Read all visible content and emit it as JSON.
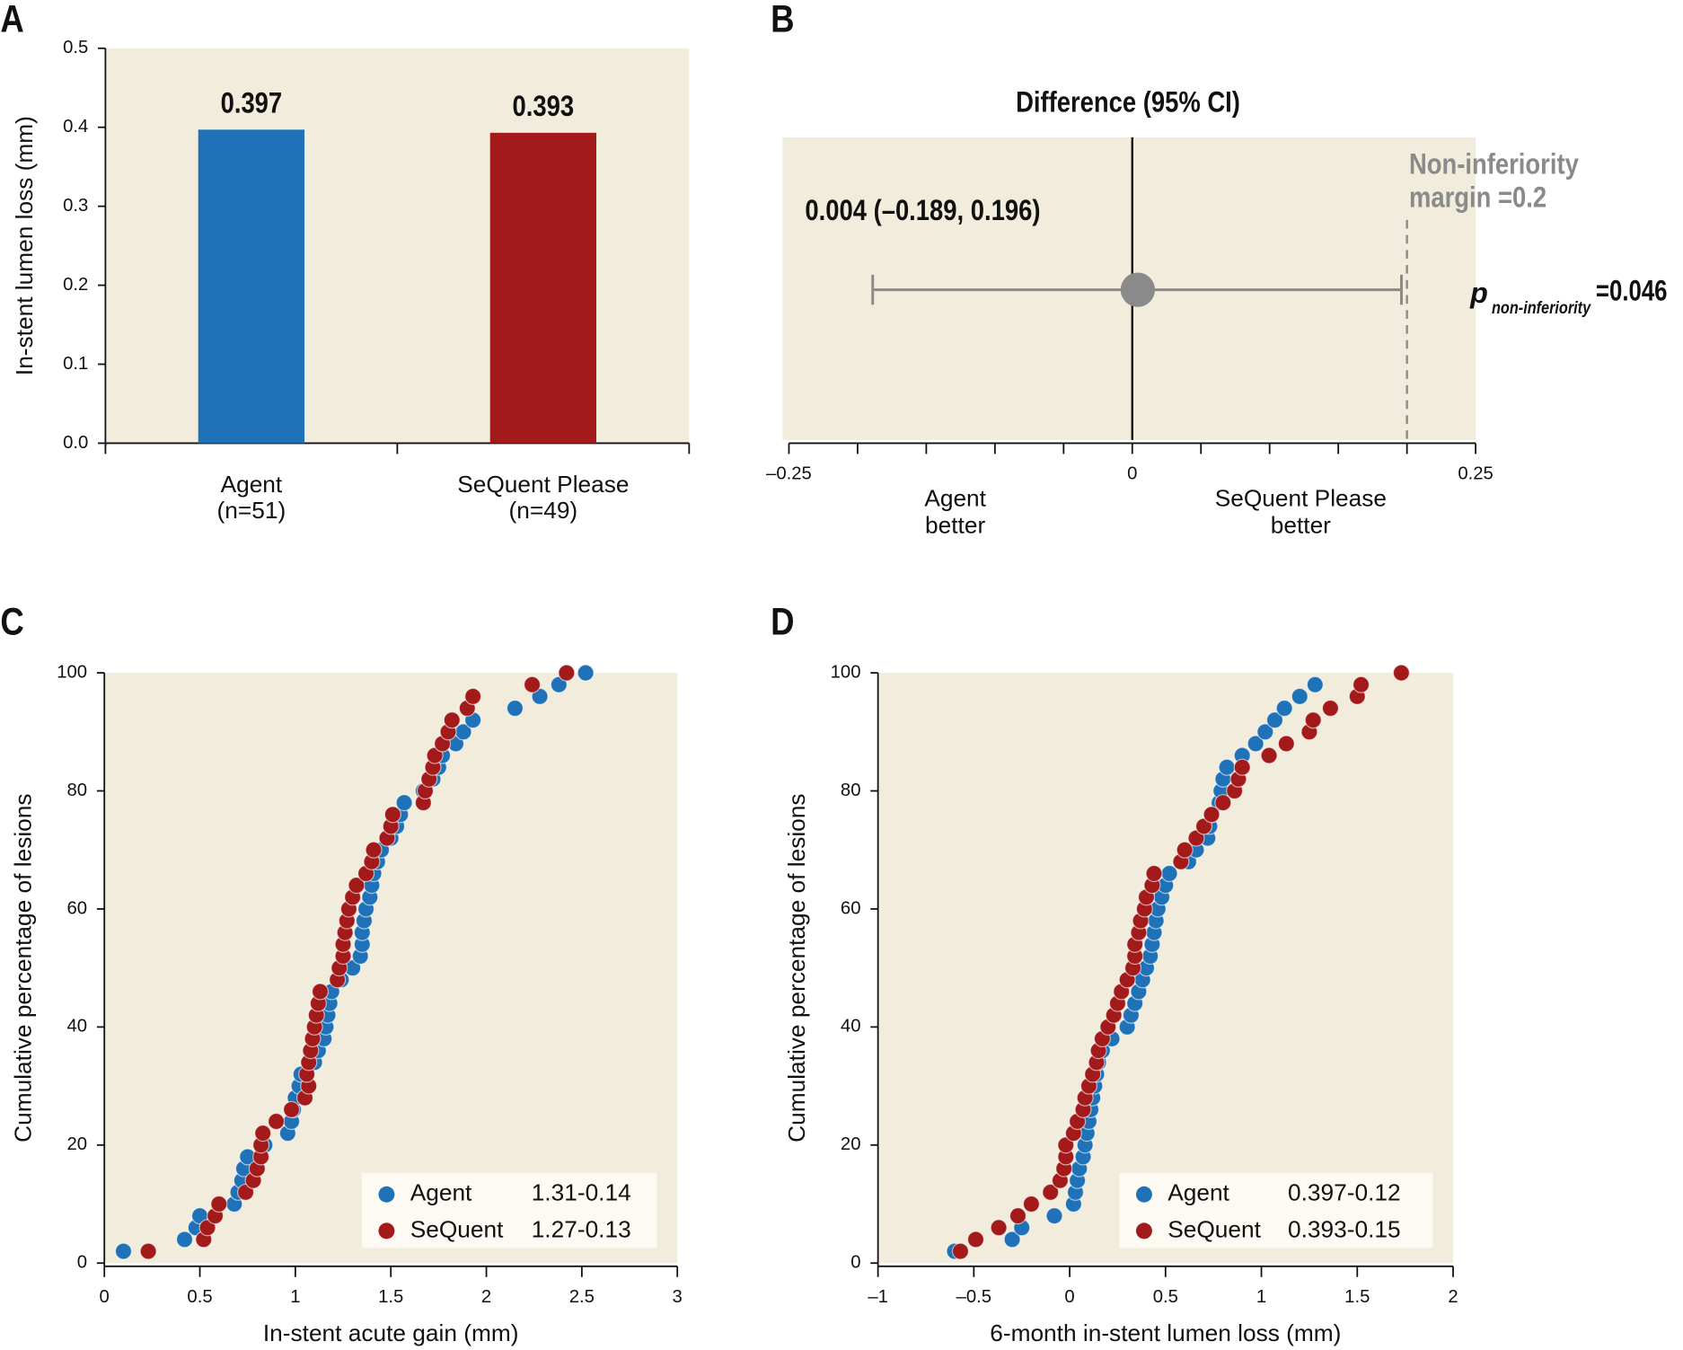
{
  "chart_data": [
    {
      "type": "bar",
      "panel": "A",
      "ylabel": "In-stent lumen loss (mm)",
      "categories": [
        "Agent",
        "SeQuent Please"
      ],
      "category_notes": [
        "(n=51)",
        "(n=49)"
      ],
      "values": [
        0.397,
        0.393
      ],
      "colors": [
        "#1f72b8",
        "#a31a1b"
      ],
      "ylim": [
        0,
        0.5
      ],
      "yticks": [
        {
          "value": 0,
          "label": "0.0"
        },
        0.1,
        0.2,
        0.3,
        0.4,
        0.5
      ]
    },
    {
      "type": "forest",
      "panel": "B",
      "title": "Difference (95% CI)",
      "estimate": 0.004,
      "ci": [
        -0.189,
        0.196
      ],
      "estimate_label": "0.004 (–0.189, 0.196)",
      "margin": 0.2,
      "margin_label": [
        "Non-inferiority",
        "margin =0.2"
      ],
      "p_label": [
        "p",
        "non-inferiority",
        "=0.046"
      ],
      "side_labels": [
        [
          "Agent",
          "better"
        ],
        [
          "SeQuent Please",
          "better"
        ]
      ],
      "xlim": [
        -0.25,
        0.25
      ],
      "xticks": [
        {
          "value": -0.25,
          "label": "–0.25"
        },
        0,
        0.25
      ],
      "xminor_ticks": [
        -0.2,
        -0.15,
        -0.1,
        -0.05,
        0.05,
        0.1,
        0.15,
        0.2
      ]
    },
    {
      "type": "scatter",
      "panel": "C",
      "xlabel": "In-stent acute gain (mm)",
      "ylabel": "Cumulative percentage of lesions",
      "xlim": [
        0,
        3
      ],
      "xticks": [
        0,
        0.5,
        1,
        1.5,
        2,
        2.5,
        3
      ],
      "ylim": [
        0,
        100
      ],
      "yticks": [
        0,
        20,
        40,
        60,
        80,
        100
      ],
      "series": [
        {
          "name": "Agent",
          "stat": "1.31-0.14",
          "color": "#1f72b8",
          "x": [
            0.1,
            0.42,
            0.48,
            0.5,
            0.68,
            0.7,
            0.72,
            0.73,
            0.75,
            0.84,
            0.96,
            0.98,
            0.99,
            1.0,
            1.02,
            1.03,
            1.1,
            1.12,
            1.15,
            1.16,
            1.17,
            1.18,
            1.19,
            1.24,
            1.3,
            1.34,
            1.35,
            1.35,
            1.36,
            1.37,
            1.39,
            1.4,
            1.41,
            1.43,
            1.45,
            1.5,
            1.53,
            1.55,
            1.57,
            1.67,
            1.72,
            1.75,
            1.77,
            1.84,
            1.88,
            1.93,
            2.15,
            2.28,
            2.38,
            2.52
          ],
          "y": [
            2,
            4,
            6,
            8,
            10,
            12,
            14,
            16,
            18,
            20,
            22,
            24,
            26,
            28,
            30,
            32,
            34,
            36,
            38,
            40,
            42,
            44,
            46,
            48,
            50,
            52,
            54,
            56,
            58,
            60,
            62,
            64,
            66,
            68,
            70,
            72,
            74,
            76,
            78,
            80,
            82,
            84,
            86,
            88,
            90,
            92,
            94,
            96,
            98,
            100
          ]
        },
        {
          "name": "SeQuent",
          "stat": "1.27-0.13",
          "color": "#a31a1b",
          "x": [
            0.23,
            0.52,
            0.54,
            0.58,
            0.6,
            0.74,
            0.78,
            0.8,
            0.82,
            0.82,
            0.83,
            0.9,
            0.98,
            1.05,
            1.07,
            1.06,
            1.07,
            1.08,
            1.09,
            1.1,
            1.11,
            1.12,
            1.13,
            1.22,
            1.23,
            1.25,
            1.25,
            1.26,
            1.27,
            1.28,
            1.3,
            1.32,
            1.37,
            1.4,
            1.41,
            1.48,
            1.5,
            1.51,
            1.67,
            1.68,
            1.7,
            1.72,
            1.73,
            1.77,
            1.8,
            1.82,
            1.9,
            1.93,
            2.24,
            2.42
          ],
          "y": [
            2,
            4,
            6,
            8,
            10,
            12,
            14,
            16,
            18,
            20,
            22,
            24,
            26,
            28,
            30,
            32,
            34,
            36,
            38,
            40,
            42,
            44,
            46,
            48,
            50,
            52,
            54,
            56,
            58,
            60,
            62,
            64,
            66,
            68,
            70,
            72,
            74,
            76,
            78,
            80,
            82,
            84,
            86,
            88,
            90,
            92,
            94,
            96,
            98,
            100
          ]
        }
      ]
    },
    {
      "type": "scatter",
      "panel": "D",
      "xlabel": "6-month in-stent lumen loss (mm)",
      "ylabel": "Cumulative percentage of lesions",
      "xlim": [
        -1,
        2
      ],
      "xticks": [
        {
          "value": -1,
          "label": "–1"
        },
        {
          "value": -0.5,
          "label": "–0.5"
        },
        0,
        0.5,
        1,
        1.5,
        2
      ],
      "ylim": [
        0,
        100
      ],
      "yticks": [
        0,
        20,
        40,
        60,
        80,
        100
      ],
      "series": [
        {
          "name": "Agent",
          "stat": "0.397-0.12",
          "color": "#1f72b8",
          "x": [
            -0.6,
            -0.3,
            -0.25,
            -0.08,
            0.02,
            0.03,
            0.04,
            0.05,
            0.07,
            0.08,
            0.09,
            0.1,
            0.11,
            0.12,
            0.13,
            0.14,
            0.15,
            0.17,
            0.22,
            0.3,
            0.32,
            0.34,
            0.36,
            0.38,
            0.4,
            0.42,
            0.43,
            0.44,
            0.45,
            0.46,
            0.48,
            0.5,
            0.52,
            0.62,
            0.66,
            0.72,
            0.73,
            0.74,
            0.78,
            0.79,
            0.8,
            0.82,
            0.9,
            0.97,
            1.02,
            1.07,
            1.12,
            1.2,
            1.28
          ],
          "y": [
            2,
            4,
            6,
            8,
            10,
            12,
            14,
            16,
            18,
            20,
            22,
            24,
            26,
            28,
            30,
            32,
            34,
            36,
            38,
            40,
            42,
            44,
            46,
            48,
            50,
            52,
            54,
            56,
            58,
            60,
            62,
            64,
            66,
            68,
            70,
            72,
            74,
            76,
            78,
            80,
            82,
            84,
            86,
            88,
            90,
            92,
            94,
            96,
            98
          ]
        },
        {
          "name": "SeQuent",
          "stat": "0.393-0.15",
          "color": "#a31a1b",
          "x": [
            -0.57,
            -0.49,
            -0.37,
            -0.27,
            -0.2,
            -0.1,
            -0.05,
            -0.03,
            -0.02,
            -0.02,
            0.02,
            0.04,
            0.07,
            0.08,
            0.1,
            0.12,
            0.14,
            0.15,
            0.17,
            0.2,
            0.23,
            0.25,
            0.27,
            0.3,
            0.33,
            0.34,
            0.34,
            0.36,
            0.37,
            0.39,
            0.4,
            0.43,
            0.44,
            0.58,
            0.6,
            0.66,
            0.7,
            0.74,
            0.8,
            0.86,
            0.88,
            0.9,
            1.04,
            1.13,
            1.25,
            1.27,
            1.36,
            1.5,
            1.52,
            1.73
          ],
          "y": [
            2,
            4,
            6,
            8,
            10,
            12,
            14,
            16,
            18,
            20,
            22,
            24,
            26,
            28,
            30,
            32,
            34,
            36,
            38,
            40,
            42,
            44,
            46,
            48,
            50,
            52,
            54,
            56,
            58,
            60,
            62,
            64,
            66,
            68,
            70,
            72,
            74,
            76,
            78,
            80,
            82,
            84,
            86,
            88,
            90,
            92,
            94,
            96,
            98,
            100
          ]
        }
      ]
    }
  ]
}
